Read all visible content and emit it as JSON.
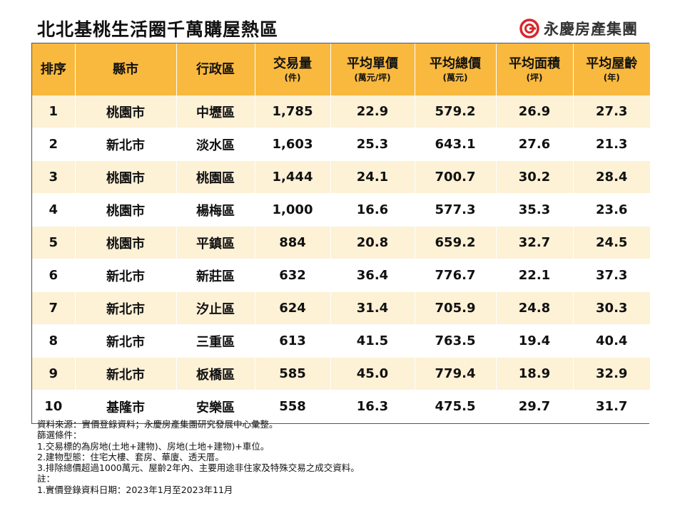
{
  "title": "北北基桃生活圈千萬購屋熱區",
  "logo": {
    "text": "永慶房產集團",
    "mark": "yungching-logo-icon",
    "color": "#d9262b"
  },
  "colors": {
    "header": "#f9b93e",
    "stripe": "#fdf1d6"
  },
  "table": {
    "headers": [
      {
        "main": "排序",
        "unit": ""
      },
      {
        "main": "縣市",
        "unit": ""
      },
      {
        "main": "行政區",
        "unit": ""
      },
      {
        "main": "交易量",
        "unit": "(件)"
      },
      {
        "main": "平均單價",
        "unit": "(萬元/坪)"
      },
      {
        "main": "平均總價",
        "unit": "(萬元)"
      },
      {
        "main": "平均面積",
        "unit": "(坪)"
      },
      {
        "main": "平均屋齡",
        "unit": "(年)"
      }
    ],
    "rows": [
      [
        "1",
        "桃園市",
        "中壢區",
        "1,785",
        "22.9",
        "579.2",
        "26.9",
        "27.3"
      ],
      [
        "2",
        "新北市",
        "淡水區",
        "1,603",
        "25.3",
        "643.1",
        "27.6",
        "21.3"
      ],
      [
        "3",
        "桃園市",
        "桃園區",
        "1,444",
        "24.1",
        "700.7",
        "30.2",
        "28.4"
      ],
      [
        "4",
        "桃園市",
        "楊梅區",
        "1,000",
        "16.6",
        "577.3",
        "35.3",
        "23.6"
      ],
      [
        "5",
        "桃園市",
        "平鎮區",
        "884",
        "20.8",
        "659.2",
        "32.7",
        "24.5"
      ],
      [
        "6",
        "新北市",
        "新莊區",
        "632",
        "36.4",
        "776.7",
        "22.1",
        "37.3"
      ],
      [
        "7",
        "新北市",
        "汐止區",
        "624",
        "31.4",
        "705.9",
        "24.8",
        "30.3"
      ],
      [
        "8",
        "新北市",
        "三重區",
        "613",
        "41.5",
        "763.5",
        "19.4",
        "40.4"
      ],
      [
        "9",
        "新北市",
        "板橋區",
        "585",
        "45.0",
        "779.4",
        "18.9",
        "32.9"
      ],
      [
        "10",
        "基隆市",
        "安樂區",
        "558",
        "16.3",
        "475.5",
        "29.7",
        "31.7"
      ]
    ]
  },
  "notes": [
    "資料來源：實價登錄資料；永慶房產集團研究發展中心彙整。",
    "篩選條件：",
    "1.交易標的為房地(土地+建物)、房地(土地+建物)+車位。",
    "2.建物型態：住宅大樓、套房、華廈、透天厝。",
    "3.排除總價超過1000萬元、屋齡2年內、主要用途非住家及特殊交易之成交資料。",
    "註：",
    "1.實價登錄資料日期：2023年1月至2023年11月"
  ]
}
